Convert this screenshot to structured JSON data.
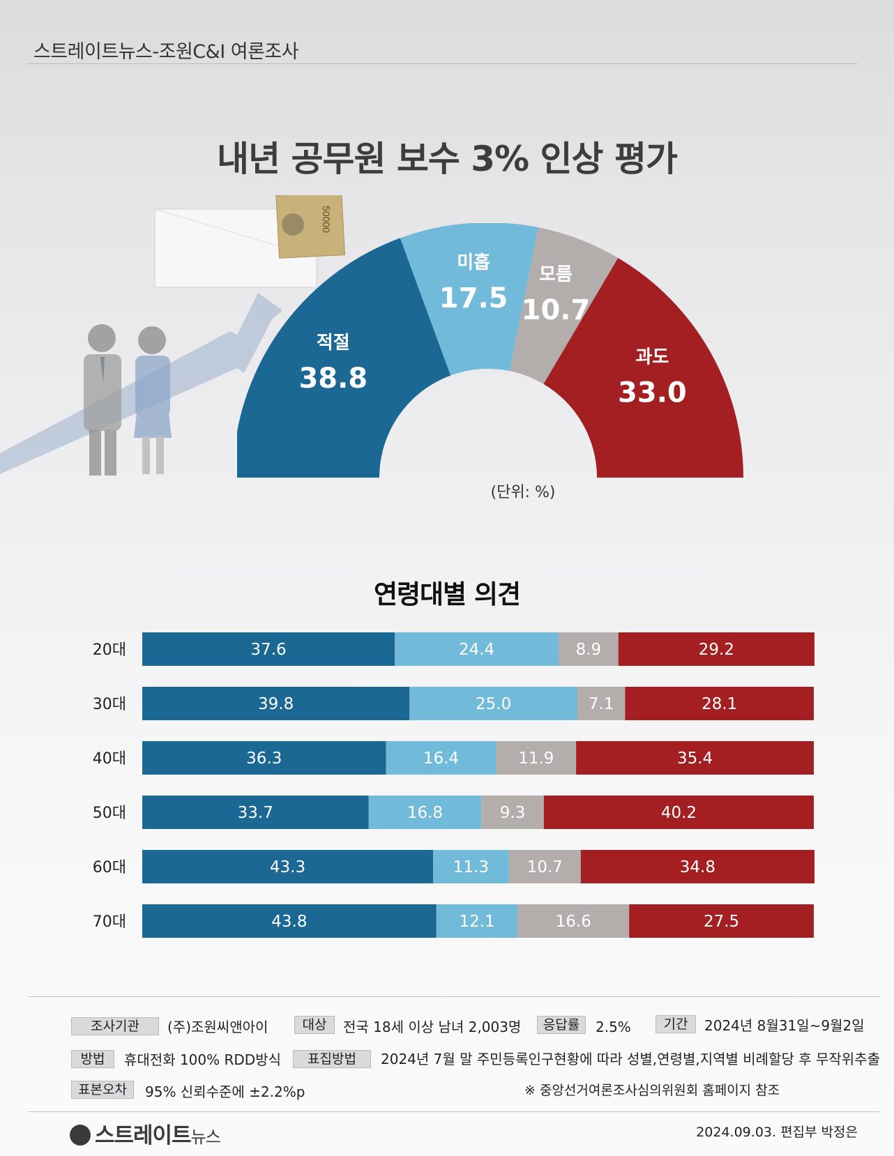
{
  "header": {
    "source_title": "스트레이트뉴스-조원C&I 여론조사"
  },
  "chart_data": [
    {
      "type": "pie",
      "title": "내년 공무원 보수 3% 인상 평가",
      "unit_label": "(단위: %)",
      "categories": [
        "적절",
        "미흡",
        "모름",
        "과도"
      ],
      "values": [
        38.8,
        17.5,
        10.7,
        33.0
      ],
      "value_labels": [
        "38.8",
        "17.5",
        "10.7",
        "33.0"
      ],
      "colors": [
        "#1b6895",
        "#72bad9",
        "#b3adac",
        "#a31f21"
      ]
    },
    {
      "type": "bar",
      "title": "연령대별 의견",
      "stacked": true,
      "orientation": "horizontal",
      "categories": [
        "20대",
        "30대",
        "40대",
        "50대",
        "60대",
        "70대"
      ],
      "series": [
        {
          "values": [
            37.6,
            39.8,
            36.3,
            33.7,
            43.3,
            43.8
          ],
          "labels": [
            "37.6",
            "39.8",
            "36.3",
            "33.7",
            "43.3",
            "43.8"
          ],
          "color": "#1b6895"
        },
        {
          "values": [
            24.4,
            25.0,
            16.4,
            16.8,
            11.3,
            12.1
          ],
          "labels": [
            "24.4",
            "25.0",
            "16.4",
            "16.8",
            "11.3",
            "12.1"
          ],
          "color": "#72bad9"
        },
        {
          "values": [
            8.9,
            7.1,
            11.9,
            9.3,
            10.7,
            16.6
          ],
          "labels": [
            "8.9",
            "7.1",
            "11.9",
            "9.3",
            "10.7",
            "16.6"
          ],
          "color": "#b3adac"
        },
        {
          "values": [
            29.2,
            28.1,
            35.4,
            40.2,
            34.8,
            27.5
          ],
          "labels": [
            "29.2",
            "28.1",
            "35.4",
            "40.2",
            "34.8",
            "27.5"
          ],
          "color": "#a31f21"
        }
      ]
    }
  ],
  "illustration": {
    "banknote_text": "50000"
  },
  "survey_info": {
    "agency_label": "조사기관",
    "agency": "(주)조원씨앤아이",
    "target_label": "대상",
    "target": "전국 18세 이상 남녀 2,003명",
    "response_label": "응답률",
    "response": "2.5%",
    "period_label": "기간",
    "period": "2024년 8월31일~9월2일",
    "method_label": "방법",
    "method": "휴대전화 100% RDD방식",
    "sampling_label": "표집방법",
    "sampling": "2024년 7월 말 주민등록인구현황에 따라 성별,연령별,지역별 비례할당 후 무작위추출",
    "error_label": "표본오차",
    "error": "95% 신뢰수준에 ±2.2%p",
    "note": "※ 중앙선거여론조사심의위원회 홈페이지 참조"
  },
  "footer": {
    "logo_main": "스트레이트",
    "logo_sub": "뉴스",
    "credit": "2024.09.03. 편집부 박정은"
  }
}
